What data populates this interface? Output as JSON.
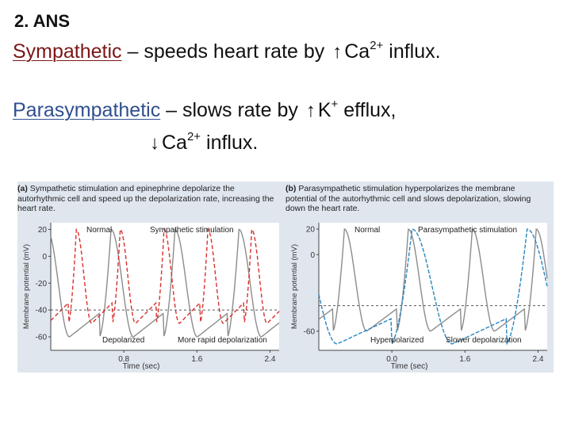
{
  "slide": {
    "heading": "2. ANS",
    "line1": {
      "term": "Sympathetic",
      "text": " – speeds heart rate by ",
      "arrow": "↑",
      "ion": "Ca",
      "charge": "2+",
      "tail": " influx."
    },
    "line2": {
      "term": "Parasympathetic",
      "text": " – slows rate by ",
      "arrow": "↑",
      "ion": "K",
      "charge": "+",
      "tail": " efflux,"
    },
    "line3": {
      "arrow": "↓",
      "ion": "Ca",
      "charge": "2+",
      "tail": " influx."
    }
  },
  "colors": {
    "sympathetic": "#d9302c",
    "parasympathetic": "#2784c0",
    "normal": "#8c8c8c",
    "figure_bg": "#dfe6ee"
  },
  "chart_data": [
    {
      "type": "line",
      "panel_label": "(a)",
      "caption": "Sympathetic stimulation and epinephrine depolarize the autorhythmic cell and speed up the depolarization rate, increasing the heart rate.",
      "xlabel": "Time (sec)",
      "ylabel": "Membrane potential (mV)",
      "xticks": [
        "0.8",
        "1.6",
        "2.4"
      ],
      "yticks": [
        "20",
        "0",
        "-20",
        "-40",
        "-60"
      ],
      "threshold": -40,
      "annotations": {
        "normal": "Normal",
        "stim": "Sympathetic stimulation",
        "bottom_left": "Depolarized",
        "bottom_right": "More rapid depolarization"
      },
      "series": [
        {
          "name": "Normal",
          "peaks": [
            0.66,
            1.36,
            2.06
          ],
          "period": 0.7,
          "min": -60,
          "max": 20
        },
        {
          "name": "Sympathetic stimulation",
          "peaks": [
            0.28,
            0.76,
            1.24,
            1.72,
            2.2
          ],
          "period": 0.48,
          "min": -50,
          "max": 20
        }
      ],
      "xlim": [
        0,
        2.5
      ],
      "ylim": [
        -70,
        25
      ]
    },
    {
      "type": "line",
      "panel_label": "(b)",
      "caption": "Parasympathetic stimulation hyperpolarizes the membrane potential of the autorhythmic cell and slows depolarization, slowing down the heart rate.",
      "xlabel": "Time (sec)",
      "ylabel": "Membrane potential (mV)",
      "xticks": [
        "0.0",
        "1.6",
        "2.4"
      ],
      "yticks": [
        "20",
        "0",
        "-60"
      ],
      "threshold": -40,
      "annotations": {
        "normal": "Normal",
        "stim": "Parasympathetic stimulation",
        "bottom_left": "Hyperpolarized",
        "bottom_right": "Slower depolarization"
      },
      "series": [
        {
          "name": "Normal",
          "peaks": [
            0.28,
            0.98,
            1.68,
            2.38
          ],
          "period": 0.7,
          "min": -60,
          "max": 20
        },
        {
          "name": "Parasympathetic stimulation",
          "peaks": [
            1.02,
            2.28
          ],
          "period": 1.26,
          "min": -70,
          "max": 20
        }
      ],
      "xlim": [
        0,
        2.5
      ],
      "ylim": [
        -75,
        25
      ]
    }
  ]
}
